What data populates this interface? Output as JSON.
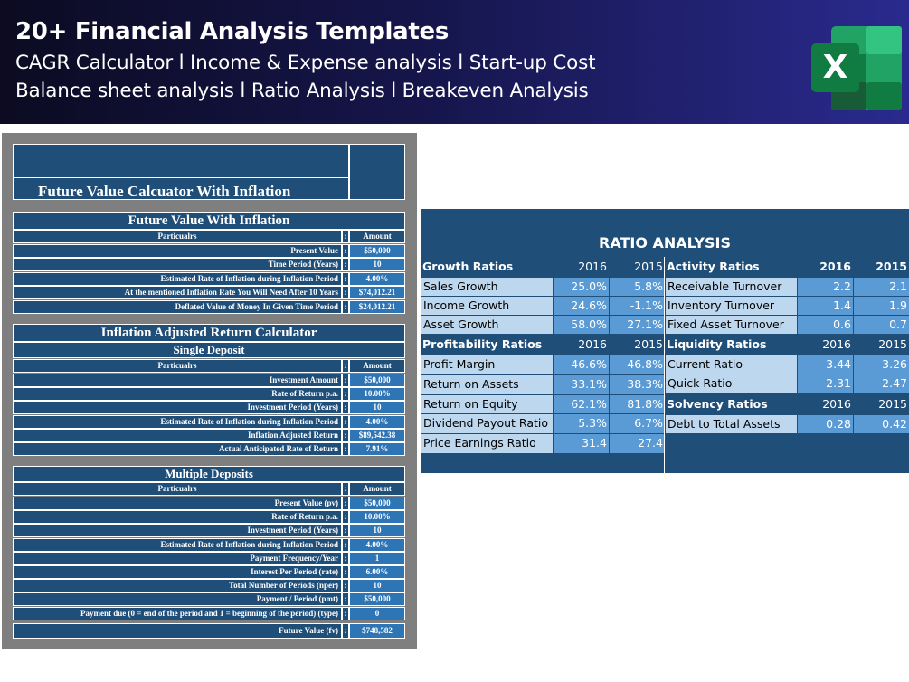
{
  "banner": {
    "title": "20+ Financial Analysis Templates",
    "subtitle_line1": "CAGR Calculator l Income & Expense analysis l Start-up Cost",
    "subtitle_line2": "Balance sheet analysis l Ratio Analysis l Breakeven Analysis",
    "icon": "excel-icon",
    "icon_letter": "X"
  },
  "calculator": {
    "main_title": "Future Value Calcuator With Inflation",
    "fv_inflation": {
      "heading": "Future Value With Inflation",
      "col_particulars": "Particualrs",
      "col_amount": "Amount",
      "rows": [
        {
          "label": "Present Value",
          "value": "$50,000"
        },
        {
          "label": "Time Period (Years)",
          "value": "10"
        },
        {
          "label": "Estimated Rate of Inflation during Inflation Period",
          "value": "4.00%"
        },
        {
          "label": "At the mentioned Inflation Rate You Will Need After 10 Years",
          "value": "$74,012.21"
        },
        {
          "label": "Deflated Value of Money In Given Time Period",
          "value": "$24,012.21"
        }
      ]
    },
    "inflation_adjusted": {
      "heading": "Inflation Adjusted Return Calculator",
      "subheading": "Single Deposit",
      "col_particulars": "Particualrs",
      "col_amount": "Amount",
      "rows": [
        {
          "label": "Investment Amount",
          "value": "$50,000"
        },
        {
          "label": "Rate of Return p.a.",
          "value": "10.00%"
        },
        {
          "label": "Investment Period (Years)",
          "value": "10"
        },
        {
          "label": "Estimated Rate of Inflation during Inflation Period",
          "value": "4.00%"
        },
        {
          "label": "Inflation Adjusted Return",
          "value": "$89,542.38"
        },
        {
          "label": "Actual Anticipated Rate of Return",
          "value": "7.91%"
        }
      ]
    },
    "multiple_deposits": {
      "heading": "Multiple Deposits",
      "col_particulars": "Particualrs",
      "col_amount": "Amount",
      "rows": [
        {
          "label": "Present Value (pv)",
          "value": "$50,000"
        },
        {
          "label": "Rate of Return p.a.",
          "value": "10.00%"
        },
        {
          "label": "Investment Period (Years)",
          "value": "10"
        },
        {
          "label": "Estimated Rate of Inflation during Inflation Period",
          "value": "4.00%"
        },
        {
          "label": "Payment Frequency/Year",
          "value": "1"
        },
        {
          "label": "Interest Per Period (rate)",
          "value": "6.00%"
        },
        {
          "label": "Total Number of Periods (nper)",
          "value": "10"
        },
        {
          "label": "Payment / Period (pmt)",
          "value": "$50,000"
        },
        {
          "label": "Payment due (0 = end of the period and 1 = beginning of the period) (type)",
          "value": "0"
        },
        {
          "label": "Future Value (fv)",
          "value": "$748,582"
        }
      ]
    },
    "colon": ":"
  },
  "ratio_analysis": {
    "title": "RATIO ANALYSIS",
    "growth": {
      "heading": "Growth Ratios",
      "y1": "2016",
      "y2": "2015",
      "rows": [
        {
          "label": "Sales Growth",
          "v1": "25.0%",
          "v2": "5.8%"
        },
        {
          "label": "Income Growth",
          "v1": "24.6%",
          "v2": "-1.1%"
        },
        {
          "label": "Asset Growth",
          "v1": "58.0%",
          "v2": "27.1%"
        }
      ]
    },
    "profitability": {
      "heading": "Profitability Ratios",
      "y1": "2016",
      "y2": "2015",
      "rows": [
        {
          "label": "Profit Margin",
          "v1": "46.6%",
          "v2": "46.8%"
        },
        {
          "label": "Return on Assets",
          "v1": "33.1%",
          "v2": "38.3%"
        },
        {
          "label": "Return on Equity",
          "v1": "62.1%",
          "v2": "81.8%"
        },
        {
          "label": "Dividend Payout Ratio",
          "v1": "5.3%",
          "v2": "6.7%"
        },
        {
          "label": "Price Earnings Ratio",
          "v1": "31.4",
          "v2": "27.4"
        }
      ]
    },
    "activity": {
      "heading": "Activity Ratios",
      "y1": "2016",
      "y2": "2015",
      "rows": [
        {
          "label": "Receivable Turnover",
          "v1": "2.2",
          "v2": "2.1"
        },
        {
          "label": "Inventory Turnover",
          "v1": "1.4",
          "v2": "1.9"
        },
        {
          "label": "Fixed Asset Turnover",
          "v1": "0.6",
          "v2": "0.7"
        }
      ]
    },
    "liquidity": {
      "heading": "Liquidity Ratios",
      "y1": "2016",
      "y2": "2015",
      "rows": [
        {
          "label": "Current Ratio",
          "v1": "3.44",
          "v2": "3.26"
        },
        {
          "label": "Quick Ratio",
          "v1": "2.31",
          "v2": "2.47"
        }
      ]
    },
    "solvency": {
      "heading": "Solvency Ratios",
      "y1": "2016",
      "y2": "2015",
      "rows": [
        {
          "label": "Debt to Total Assets",
          "v1": "0.28",
          "v2": "0.42"
        }
      ]
    }
  }
}
